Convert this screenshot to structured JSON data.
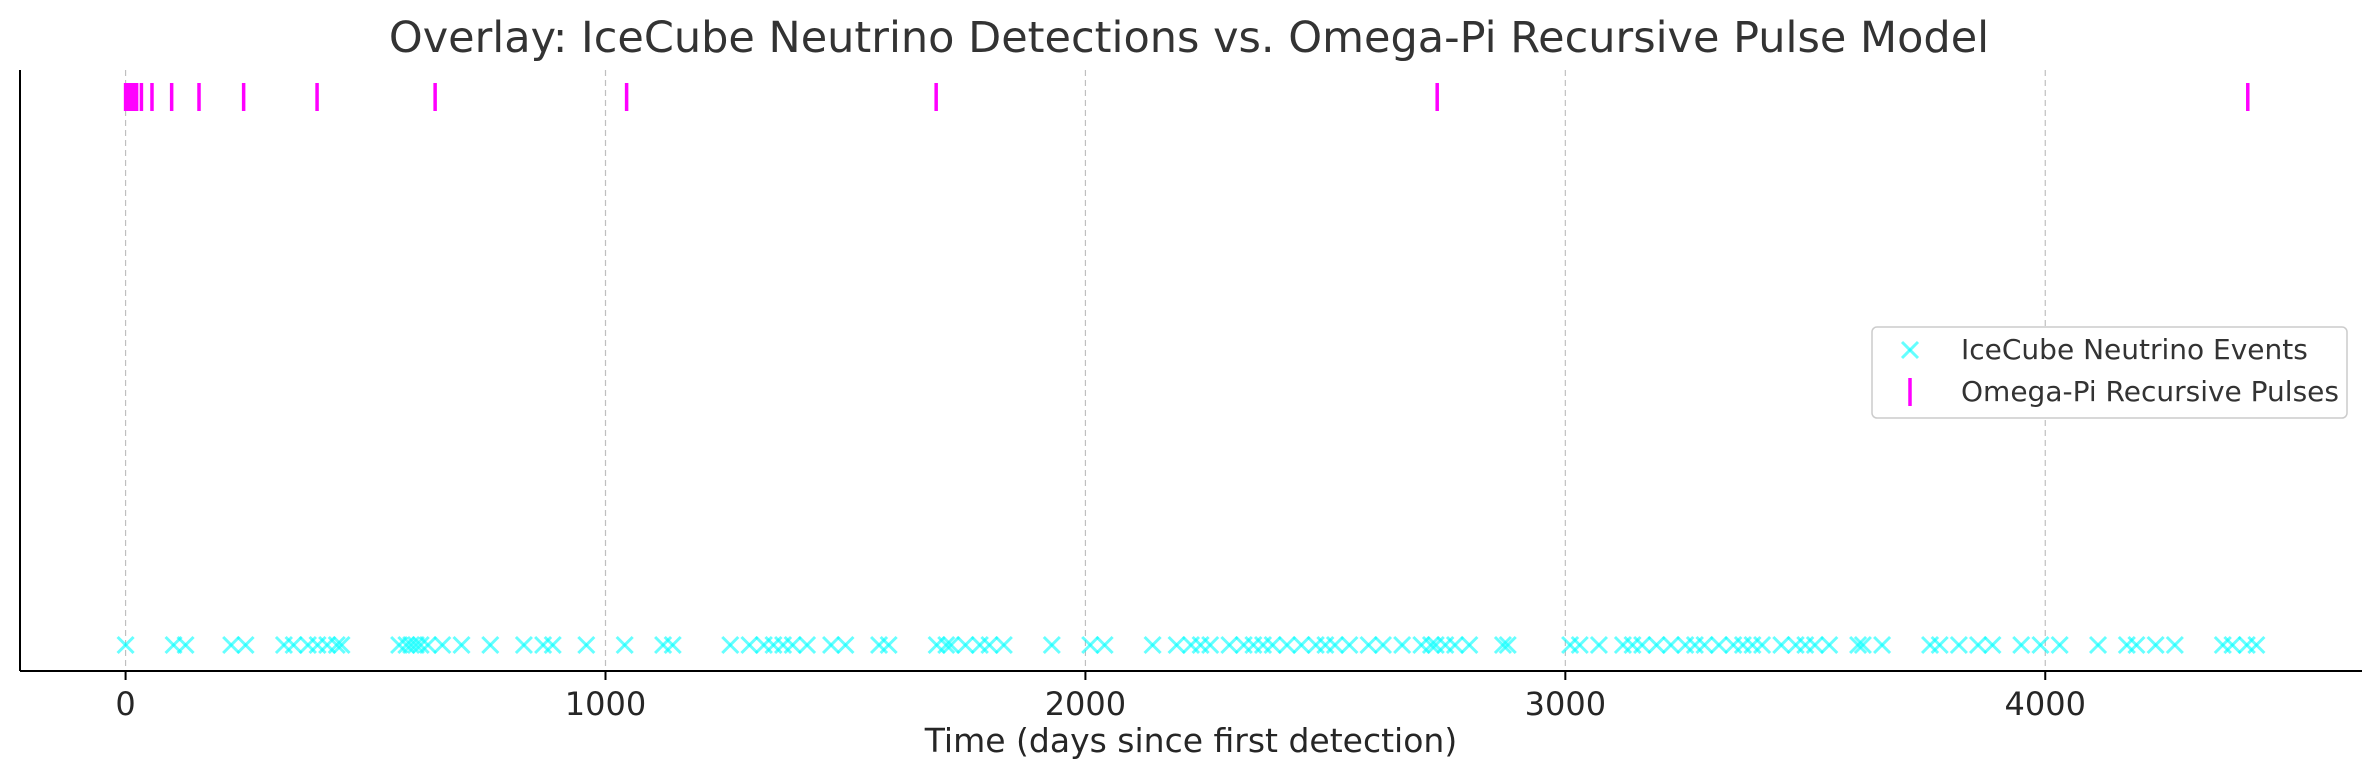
{
  "chart_data": {
    "type": "scatter",
    "title": "Overlay: IceCube Neutrino Detections vs. Omega-Pi Recursive Pulse Model",
    "xlabel": "Time (days since first detection)",
    "ylabel": "",
    "xlim": [
      -220,
      4660
    ],
    "xticks": [
      0,
      1000,
      2000,
      3000,
      4000
    ],
    "xtick_labels": [
      "0",
      "1000",
      "2000",
      "3000",
      "4000"
    ],
    "grid": "vertical dashed",
    "legend_position": "center-right",
    "series": [
      {
        "name": "IceCube Neutrino Events",
        "marker": "x",
        "color": "#00FFFF",
        "y": 0,
        "x": [
          0,
          100,
          125,
          220,
          250,
          330,
          350,
          380,
          400,
          420,
          440,
          450,
          570,
          585,
          595,
          605,
          615,
          630,
          660,
          700,
          760,
          830,
          870,
          890,
          960,
          1040,
          1120,
          1140,
          1260,
          1300,
          1330,
          1350,
          1370,
          1390,
          1420,
          1470,
          1500,
          1570,
          1590,
          1690,
          1710,
          1720,
          1750,
          1780,
          1800,
          1830,
          1930,
          2010,
          2040,
          2140,
          2190,
          2220,
          2240,
          2260,
          2300,
          2330,
          2350,
          2370,
          2390,
          2420,
          2450,
          2480,
          2500,
          2520,
          2550,
          2590,
          2620,
          2660,
          2700,
          2720,
          2730,
          2750,
          2770,
          2800,
          2870,
          2880,
          3010,
          3030,
          3070,
          3120,
          3140,
          3160,
          3190,
          3220,
          3250,
          3270,
          3290,
          3320,
          3350,
          3370,
          3390,
          3410,
          3450,
          3480,
          3500,
          3520,
          3550,
          3610,
          3620,
          3660,
          3760,
          3780,
          3820,
          3860,
          3890,
          3950,
          3990,
          4030,
          4110,
          4170,
          4190,
          4230,
          4270,
          4370,
          4390,
          4420,
          4440
        ]
      },
      {
        "name": "Omega-Pi Recursive Pulses",
        "marker": "|",
        "color": "#FF00FF",
        "y": 1,
        "x": [
          0,
          3,
          6,
          9,
          13,
          17,
          23,
          33,
          55,
          96,
          153,
          246,
          399,
          645,
          1044,
          1689,
          2733,
          4422
        ]
      }
    ]
  }
}
